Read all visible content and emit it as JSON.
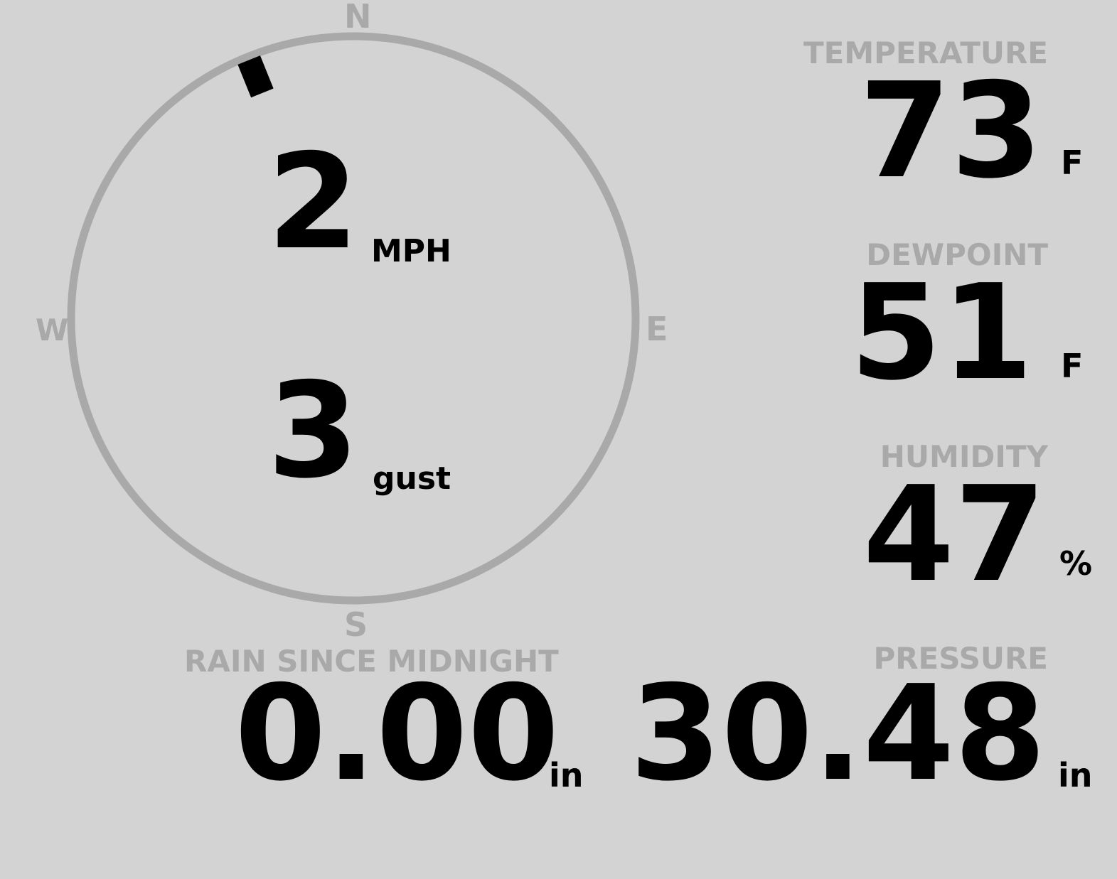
{
  "compass": {
    "north": "N",
    "south": "S",
    "east": "E",
    "west": "W",
    "wind_direction_deg": 338,
    "ring_color": "#a9a9a9",
    "marker_color": "#000000"
  },
  "wind": {
    "speed": "2",
    "speed_unit": "MPH",
    "gust": "3",
    "gust_unit": "gust"
  },
  "temperature": {
    "label": "TEMPERATURE",
    "value": "73",
    "unit": "F"
  },
  "dewpoint": {
    "label": "DEWPOINT",
    "value": "51",
    "unit": "F"
  },
  "humidity": {
    "label": "HUMIDITY",
    "value": "47",
    "unit": "%"
  },
  "rain": {
    "label": "RAIN SINCE MIDNIGHT",
    "value": "0.00",
    "unit": "in"
  },
  "pressure": {
    "label": "PRESSURE",
    "value": "30.48",
    "unit": "in"
  },
  "colors": {
    "background": "#d3d3d3",
    "label": "#a9a9a9",
    "value": "#000000"
  }
}
